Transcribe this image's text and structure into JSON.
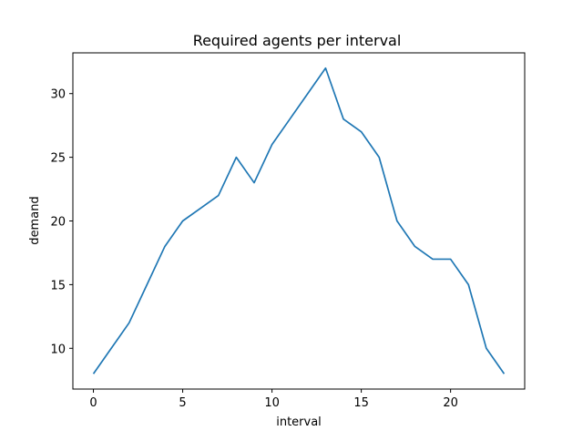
{
  "chart_data": {
    "type": "line",
    "title": "Required agents per interval",
    "xlabel": "interval",
    "ylabel": "demand",
    "xlim": [
      -1.15,
      24.15
    ],
    "ylim": [
      6.8,
      33.2
    ],
    "x_ticks": [
      0,
      5,
      10,
      15,
      20
    ],
    "y_ticks": [
      10,
      15,
      20,
      25,
      30
    ],
    "grid": false,
    "legend": "none",
    "line_color": "#1f77b4",
    "series": [
      {
        "x": [
          0,
          1,
          2,
          3,
          4,
          5,
          6,
          7,
          8,
          9,
          10,
          11,
          12,
          13,
          14,
          15,
          16,
          17,
          18,
          19,
          20,
          21,
          22,
          23
        ],
        "values": [
          8,
          10,
          12,
          15,
          18,
          20,
          21,
          22,
          25,
          23,
          26,
          28,
          30,
          32,
          28,
          27,
          25,
          20,
          18,
          17,
          17,
          15,
          10,
          8
        ]
      }
    ]
  }
}
